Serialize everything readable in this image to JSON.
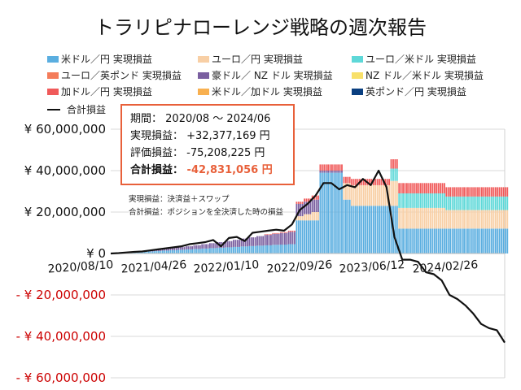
{
  "chart_data": {
    "type": "bar",
    "title": "トラリピナローレンジ戦略の週次報告",
    "x_tick_labels": [
      "2020/08/10",
      "2021/04/26",
      "2022/01/10",
      "2022/09/26",
      "2023/06/12",
      "2024/02/26"
    ],
    "y_tick_labels": [
      "¥ 60,000,000",
      "¥ 40,000,000",
      "¥ 20,000,000",
      "¥ 0",
      "- ¥ 20,000,000",
      "- ¥ 40,000,000",
      "- ¥ 60,000,000"
    ],
    "ylim": [
      -60000000,
      60000000
    ],
    "grid": true,
    "legend_placement": "top",
    "x": [
      "2020/08/10",
      "2020/09/07",
      "2020/10/05",
      "2020/11/02",
      "2020/11/30",
      "2020/12/28",
      "2021/01/25",
      "2021/02/22",
      "2021/03/22",
      "2021/04/19",
      "2021/05/17",
      "2021/06/14",
      "2021/07/12",
      "2021/08/09",
      "2021/09/06",
      "2021/10/04",
      "2021/11/01",
      "2021/11/29",
      "2021/12/27",
      "2022/01/24",
      "2022/02/21",
      "2022/03/21",
      "2022/04/18",
      "2022/05/16",
      "2022/06/13",
      "2022/07/11",
      "2022/08/08",
      "2022/09/05",
      "2022/10/03",
      "2022/10/31",
      "2022/11/28",
      "2022/12/26",
      "2023/01/23",
      "2023/02/20",
      "2023/03/20",
      "2023/04/17",
      "2023/05/15",
      "2023/06/12",
      "2023/07/10",
      "2023/08/07",
      "2023/09/04",
      "2023/10/02",
      "2023/10/30",
      "2023/11/27",
      "2023/12/25",
      "2024/01/22",
      "2024/02/19",
      "2024/03/18",
      "2024/04/15",
      "2024/05/13",
      "2024/06/10"
    ],
    "series": [
      {
        "name": "米ドル／円 実現損益",
        "color": "#5aaee0",
        "type": "bar",
        "values": [
          0,
          200000,
          400000,
          600000,
          800000,
          1000000,
          1200000,
          1400000,
          1600000,
          1800000,
          2000000,
          2200000,
          2400000,
          2600000,
          2800000,
          3000000,
          3200000,
          3400000,
          3600000,
          3800000,
          4000000,
          4200000,
          4300000,
          4500000,
          16000000,
          16000000,
          16000000,
          39000000,
          39000000,
          39000000,
          26000000,
          23000000,
          23000000,
          23000000,
          23000000,
          23000000,
          23000000,
          12000000,
          12000000,
          12000000,
          12000000,
          12000000,
          12000000,
          12000000,
          12000000,
          12000000,
          12000000,
          12000000,
          12000000,
          12000000,
          12000000
        ]
      },
      {
        "name": "ユーロ／円 実現損益",
        "color": "#f8cfa5",
        "type": "bar",
        "values": [
          0,
          0,
          0,
          0,
          0,
          0,
          0,
          0,
          0,
          0,
          0,
          0,
          0,
          0,
          0,
          0,
          0,
          0,
          0,
          0,
          0,
          0,
          0,
          0,
          2000000,
          3000000,
          4000000,
          0,
          0,
          0,
          8000000,
          10000000,
          10000000,
          10000000,
          10000000,
          10000000,
          12000000,
          10000000,
          10000000,
          10000000,
          10000000,
          10000000,
          10000000,
          9000000,
          9000000,
          9000000,
          9000000,
          9000000,
          9000000,
          9000000,
          9000000
        ]
      },
      {
        "name": "ユーロ／米ドル 実現損益",
        "color": "#5ed8d8",
        "type": "bar",
        "values": [
          0,
          0,
          0,
          0,
          0,
          0,
          0,
          0,
          0,
          0,
          0,
          0,
          0,
          0,
          0,
          0,
          0,
          0,
          0,
          0,
          0,
          0,
          0,
          0,
          0,
          0,
          0,
          0,
          0,
          0,
          0,
          0,
          0,
          0,
          0,
          0,
          6000000,
          7000000,
          7000000,
          7000000,
          7000000,
          7000000,
          7000000,
          6500000,
          6500000,
          6500000,
          6500000,
          6500000,
          6500000,
          6500000,
          6500000
        ]
      },
      {
        "name": "ユーロ／英ポンド 実現損益",
        "color": "#f47c5a",
        "type": "bar",
        "values": [
          0,
          0,
          0,
          0,
          0,
          0,
          0,
          0,
          0,
          0,
          0,
          0,
          0,
          0,
          0,
          0,
          0,
          0,
          0,
          0,
          0,
          0,
          0,
          0,
          0,
          0,
          0,
          0,
          0,
          0,
          0,
          0,
          0,
          0,
          0,
          0,
          0,
          0,
          0,
          0,
          0,
          0,
          0,
          0,
          0,
          0,
          0,
          0,
          0,
          0,
          0
        ]
      },
      {
        "name": "豪ドル／ NZ ドル 実現損益",
        "color": "#7a5fa0",
        "type": "bar",
        "values": [
          0,
          100000,
          200000,
          300000,
          400000,
          500000,
          700000,
          900000,
          1100000,
          1300000,
          1500000,
          1800000,
          2100000,
          2400000,
          2700000,
          3000000,
          3400000,
          3800000,
          4200000,
          4600000,
          5000000,
          5300000,
          5600000,
          6000000,
          6000000,
          6000000,
          6000000,
          1000000,
          1000000,
          1000000,
          0,
          0,
          0,
          0,
          0,
          0,
          0,
          0,
          0,
          0,
          0,
          0,
          0,
          0,
          0,
          0,
          0,
          0,
          0,
          0,
          0
        ]
      },
      {
        "name": "NZ ドル／米ドル 実現損益",
        "color": "#f8e06a",
        "type": "bar",
        "values": [
          0,
          0,
          0,
          0,
          0,
          0,
          0,
          0,
          0,
          0,
          0,
          0,
          0,
          0,
          0,
          0,
          0,
          0,
          0,
          0,
          0,
          0,
          0,
          0,
          0,
          0,
          0,
          0,
          0,
          0,
          0,
          0,
          0,
          0,
          0,
          0,
          0,
          0,
          0,
          0,
          0,
          0,
          0,
          0,
          0,
          0,
          0,
          0,
          0,
          0,
          0
        ]
      },
      {
        "name": "加ドル／円 実現損益",
        "color": "#f05a5a",
        "type": "bar",
        "values": [
          0,
          0,
          0,
          0,
          0,
          0,
          0,
          0,
          0,
          0,
          0,
          0,
          0,
          0,
          0,
          0,
          0,
          0,
          0,
          0,
          300000,
          350000,
          400000,
          500000,
          1000000,
          1500000,
          2000000,
          3000000,
          3000000,
          3000000,
          3000000,
          3000000,
          3000000,
          3000000,
          3000000,
          3000000,
          4500000,
          5000000,
          5000000,
          5000000,
          5000000,
          5000000,
          5000000,
          4500000,
          4500000,
          4500000,
          4500000,
          4500000,
          4500000,
          4500000,
          4500000
        ]
      },
      {
        "name": "米ドル／加ドル 実現損益",
        "color": "#f8b050",
        "type": "bar",
        "values": [
          0,
          0,
          0,
          0,
          0,
          0,
          0,
          0,
          0,
          0,
          0,
          0,
          0,
          0,
          0,
          0,
          0,
          0,
          0,
          0,
          0,
          0,
          0,
          0,
          0,
          0,
          0,
          0,
          0,
          0,
          0,
          0,
          0,
          0,
          0,
          0,
          0,
          0,
          0,
          0,
          0,
          0,
          0,
          0,
          0,
          0,
          0,
          0,
          0,
          0,
          0
        ]
      },
      {
        "name": "英ポンド／円 実現損益",
        "color": "#0a3f80",
        "type": "bar",
        "values": [
          0,
          0,
          0,
          0,
          0,
          0,
          0,
          0,
          0,
          0,
          0,
          0,
          0,
          0,
          0,
          0,
          0,
          0,
          0,
          0,
          0,
          0,
          0,
          0,
          0,
          0,
          0,
          0,
          0,
          0,
          0,
          0,
          0,
          0,
          0,
          0,
          0,
          0,
          0,
          0,
          0,
          0,
          0,
          0,
          0,
          0,
          0,
          0,
          0,
          0,
          0
        ]
      },
      {
        "name": "合計損益",
        "color": "#111111",
        "type": "line",
        "values": [
          0,
          200000,
          500000,
          800000,
          1000000,
          1500000,
          2000000,
          2500000,
          3000000,
          3500000,
          4500000,
          5000000,
          5500000,
          6500000,
          3500000,
          7500000,
          8000000,
          6000000,
          10000000,
          10500000,
          11000000,
          11500000,
          11000000,
          14000000,
          21000000,
          24000000,
          28000000,
          34000000,
          34000000,
          31000000,
          33000000,
          32000000,
          36000000,
          33000000,
          40000000,
          32000000,
          8000000,
          -3000000,
          -3000000,
          -4000000,
          -9000000,
          -10000000,
          -13000000,
          -20000000,
          -22000000,
          -25000000,
          -29000000,
          -34000000,
          -36000000,
          -37000000,
          -43000000
        ]
      }
    ]
  },
  "summary": {
    "period_label": "期間：",
    "period_value": "2020/08 ～ 2024/06",
    "realized_label": "実現損益：",
    "realized_value": "+32,377,169 円",
    "unrealized_label": "評価損益：",
    "unrealized_value": "-75,208,225 円",
    "total_label": "合計損益：",
    "total_value": "-42,831,056 円",
    "total_color": "#e8603a"
  },
  "notes": {
    "realized_note": "実現損益：決済益＋スワップ",
    "total_note": "合計損益：ポジションを全決済した時の損益"
  }
}
